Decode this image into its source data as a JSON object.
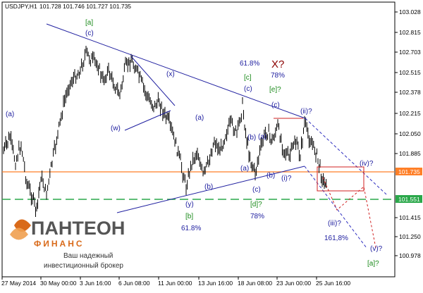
{
  "header": {
    "symbol_label": "USDJPY,H1",
    "ohlc": "101.728 101.746 101.727 101.735"
  },
  "colors": {
    "candle": "#000000",
    "trendline": "#2020a0",
    "dashed_projection": "#3030c0",
    "green_label": "#1a8a1a",
    "red_label": "#8b0000",
    "orange_line": "#ff7f27",
    "support_line": "#2aa84a",
    "target_path": "#d02020",
    "price_badge_orange": "#ff7f27",
    "price_badge_green": "#2aa84a"
  },
  "y_axis": {
    "ticks": [
      "103.028",
      "102.815",
      "102.703",
      "102.515",
      "102.378",
      "102.215",
      "102.050",
      "101.885",
      "101.735",
      "101.551",
      "101.415",
      "101.250",
      "100.978"
    ],
    "current_price": "101.735",
    "support_price": "101.551"
  },
  "x_axis": {
    "ticks": [
      "27 May 2014",
      "30 May 00:00",
      "3 Jun 16:00",
      "6 Jun 08:00",
      "11 Jun 00:00",
      "13 Jun 16:00",
      "18 Jun 08:00",
      "23 Jun 00:00",
      "25 Jun 16:00"
    ]
  },
  "wave_labels": {
    "a_left": "(a)",
    "c_top": "(c)",
    "a_green_top": "[a]",
    "x_small": "(x)",
    "w": "(w)",
    "a_mid": "(a)",
    "y": "(y)",
    "b_green": "[b]",
    "pct_618_bottom": "61.8%",
    "b_paren": "(b)",
    "pct_618_top": "61.8%",
    "c_green": "[c]",
    "c_paren_mid": "(c)",
    "X_red": "X?",
    "pct_78_top": "78%",
    "e_green": "[e]?",
    "b_small1": "(b)",
    "a_small1": "(a)",
    "a_small2": "(a)",
    "b_small2": "(b)",
    "c_small": "(c)",
    "c_paren_right": "(c)",
    "ii": "(ii)?",
    "i": "(i)?",
    "c_lower": "(c)",
    "d_green": "[d]?",
    "pct_78_bottom": "78%",
    "iv": "(iv)?",
    "iii": "(iii)?",
    "pct_1618": "161,8%",
    "v": "(v)?",
    "a_green_bottom": "[a]?",
    "b_lower_left": "(b)"
  },
  "logo": {
    "name": "ПАНТЕОН",
    "sub": "ФИНАНС",
    "tagline1": "Ваш надежный",
    "tagline2": "инвестиционный брокер"
  }
}
